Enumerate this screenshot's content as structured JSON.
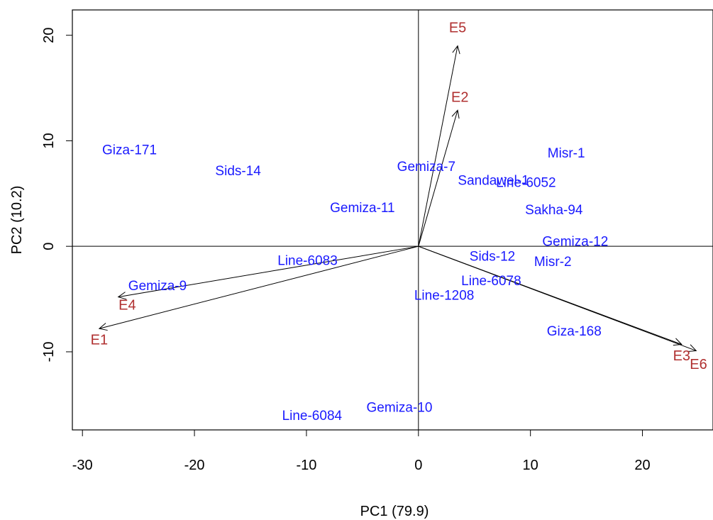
{
  "chart_data": {
    "type": "scatter",
    "subtype": "biplot",
    "title": "",
    "xlabel": "PC1 (79.9)",
    "ylabel": "PC2 (10.2)",
    "xlim": [
      -30.9,
      26.3
    ],
    "ylim": [
      -17.4,
      22.4
    ],
    "xticks": [
      -30,
      -20,
      -10,
      0,
      10,
      20
    ],
    "yticks": [
      -10,
      0,
      10,
      20
    ],
    "reference_lines": {
      "x": 0,
      "y": 0
    },
    "colors": {
      "genotype": "#1a1aff",
      "environment": "#b03030",
      "axes": "#000000"
    },
    "genotypes": [
      {
        "label": "Giza-171",
        "x": -25.8,
        "y": 9.1
      },
      {
        "label": "Sids-14",
        "x": -16.1,
        "y": 7.1
      },
      {
        "label": "Gemiza-7",
        "x": 0.7,
        "y": 7.5
      },
      {
        "label": "Sandawel-1",
        "x": 6.7,
        "y": 6.2
      },
      {
        "label": "Line-6052",
        "x": 9.6,
        "y": 6.0
      },
      {
        "label": "Misr-1",
        "x": 13.2,
        "y": 8.8
      },
      {
        "label": "Gemiza-11",
        "x": -5.0,
        "y": 3.6
      },
      {
        "label": "Sakha-94",
        "x": 12.1,
        "y": 3.4
      },
      {
        "label": "Gemiza-12",
        "x": 14.0,
        "y": 0.4
      },
      {
        "label": "Line-6083",
        "x": -9.9,
        "y": -1.4
      },
      {
        "label": "Sids-12",
        "x": 6.6,
        "y": -1.0
      },
      {
        "label": "Misr-2",
        "x": 12.0,
        "y": -1.5
      },
      {
        "label": "Gemiza-9",
        "x": -23.3,
        "y": -3.8
      },
      {
        "label": "Line-6078",
        "x": 6.5,
        "y": -3.3
      },
      {
        "label": "Line-1208",
        "x": 2.3,
        "y": -4.7
      },
      {
        "label": "Giza-168",
        "x": 13.9,
        "y": -8.1
      },
      {
        "label": "Gemiza-10",
        "x": -1.7,
        "y": -15.3
      },
      {
        "label": "Line-6084",
        "x": -9.5,
        "y": -16.1
      }
    ],
    "environments": [
      {
        "label": "E5",
        "x": 3.5,
        "y": 19.0,
        "label_x": 3.5,
        "label_y": 20.7
      },
      {
        "label": "E2",
        "x": 3.5,
        "y": 12.9,
        "label_x": 3.7,
        "label_y": 14.1
      },
      {
        "label": "E4",
        "x": -26.8,
        "y": -4.8,
        "label_x": -26.0,
        "label_y": -5.6
      },
      {
        "label": "E1",
        "x": -28.5,
        "y": -7.8,
        "label_x": -28.5,
        "label_y": -8.9
      },
      {
        "label": "E3",
        "x": 23.5,
        "y": -9.3,
        "label_x": 23.5,
        "label_y": -10.4
      },
      {
        "label": "E6",
        "x": 24.8,
        "y": -9.9,
        "label_x": 25.0,
        "label_y": -11.2
      }
    ]
  }
}
